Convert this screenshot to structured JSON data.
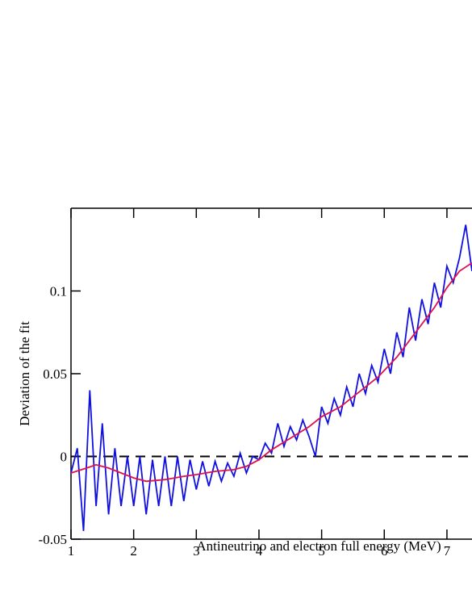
{
  "chart_data": {
    "type": "line",
    "xlabel": "Antineutrino and electron full energy (MeV)",
    "ylabel": "Deviation of the fit",
    "xlim": [
      1,
      7.4
    ],
    "xticks": [
      1,
      2,
      3,
      4,
      5,
      6,
      7
    ],
    "ylim": [
      -0.05,
      0.15
    ],
    "yticks": [
      -0.05,
      0,
      0.05,
      0.1
    ],
    "reference_line": 0,
    "series": [
      {
        "color": "#1010e0",
        "x": [
          1.0,
          1.1,
          1.2,
          1.3,
          1.4,
          1.5,
          1.6,
          1.7,
          1.8,
          1.9,
          2.0,
          2.1,
          2.2,
          2.3,
          2.4,
          2.5,
          2.6,
          2.7,
          2.8,
          2.9,
          3.0,
          3.1,
          3.2,
          3.3,
          3.4,
          3.5,
          3.6,
          3.7,
          3.8,
          3.9,
          4.0,
          4.1,
          4.2,
          4.3,
          4.4,
          4.5,
          4.6,
          4.7,
          4.8,
          4.9,
          5.0,
          5.1,
          5.2,
          5.3,
          5.4,
          5.5,
          5.6,
          5.7,
          5.8,
          5.9,
          6.0,
          6.1,
          6.2,
          6.3,
          6.4,
          6.5,
          6.6,
          6.7,
          6.8,
          6.9,
          7.0,
          7.1,
          7.2,
          7.3,
          7.4
        ],
        "values": [
          -0.01,
          0.005,
          -0.045,
          0.04,
          -0.03,
          0.02,
          -0.035,
          0.005,
          -0.03,
          0.0,
          -0.03,
          0.0,
          -0.035,
          -0.002,
          -0.03,
          0.0,
          -0.03,
          0.0,
          -0.027,
          -0.002,
          -0.02,
          -0.003,
          -0.018,
          -0.003,
          -0.015,
          -0.004,
          -0.012,
          0.002,
          -0.01,
          0.0,
          -0.002,
          0.008,
          0.002,
          0.02,
          0.006,
          0.018,
          0.01,
          0.022,
          0.012,
          0.0,
          0.03,
          0.02,
          0.035,
          0.025,
          0.042,
          0.03,
          0.05,
          0.038,
          0.055,
          0.045,
          0.065,
          0.05,
          0.075,
          0.06,
          0.09,
          0.07,
          0.095,
          0.08,
          0.105,
          0.09,
          0.115,
          0.105,
          0.12,
          0.14,
          0.112
        ]
      },
      {
        "color": "#e0104a",
        "x": [
          1.0,
          1.25,
          1.4,
          1.6,
          1.8,
          2.0,
          2.2,
          2.5,
          2.8,
          3.0,
          3.3,
          3.6,
          3.8,
          4.0,
          4.2,
          4.5,
          4.8,
          5.0,
          5.3,
          5.6,
          5.9,
          6.2,
          6.5,
          6.8,
          7.0,
          7.2,
          7.4
        ],
        "values": [
          -0.01,
          -0.007,
          -0.005,
          -0.007,
          -0.01,
          -0.013,
          -0.015,
          -0.014,
          -0.012,
          -0.011,
          -0.009,
          -0.008,
          -0.006,
          -0.002,
          0.004,
          0.011,
          0.018,
          0.024,
          0.03,
          0.039,
          0.048,
          0.06,
          0.075,
          0.09,
          0.102,
          0.112,
          0.117
        ]
      }
    ]
  }
}
